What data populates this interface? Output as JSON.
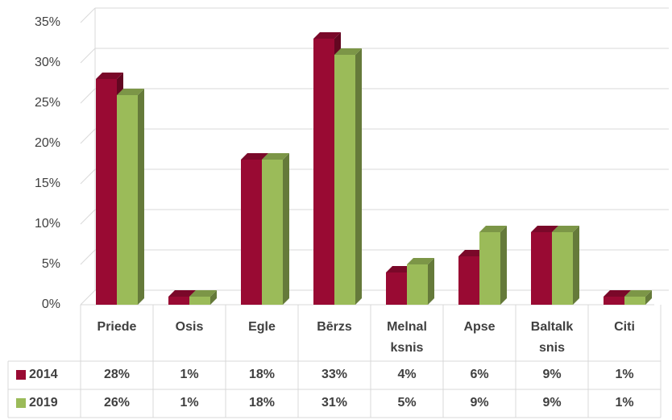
{
  "chart_data": {
    "type": "bar3d",
    "categories": [
      "Priede",
      "Osis",
      "Egle",
      "Bērzs",
      "Melnalksnis",
      "Apse",
      "Baltalksnis",
      "Citi"
    ],
    "series": [
      {
        "name": "2014",
        "color": "#990a33",
        "values": [
          28,
          1,
          18,
          33,
          4,
          6,
          9,
          1
        ],
        "value_labels": [
          "28%",
          "1%",
          "18%",
          "33%",
          "4%",
          "6%",
          "9%",
          "1%"
        ]
      },
      {
        "name": "2019",
        "color": "#9bbb59",
        "values": [
          26,
          1,
          18,
          31,
          5,
          9,
          9,
          1
        ],
        "value_labels": [
          "26%",
          "1%",
          "18%",
          "31%",
          "5%",
          "9%",
          "9%",
          "1%"
        ]
      }
    ],
    "ylim": [
      0,
      35
    ],
    "yticks": [
      {
        "value": 0,
        "label": "0%"
      },
      {
        "value": 5,
        "label": "5%"
      },
      {
        "value": 10,
        "label": "10%"
      },
      {
        "value": 15,
        "label": "15%"
      },
      {
        "value": 20,
        "label": "20%"
      },
      {
        "value": 25,
        "label": "25%"
      },
      {
        "value": 30,
        "label": "30%"
      },
      {
        "value": 35,
        "label": "35%"
      }
    ],
    "grid": true
  }
}
